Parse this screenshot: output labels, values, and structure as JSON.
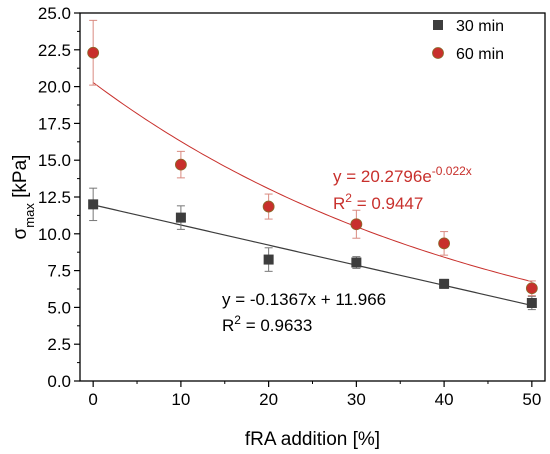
{
  "chart_data": {
    "type": "scatter",
    "xlabel": "fRA addition [%]",
    "ylabel_main": "σ",
    "ylabel_sub": "max",
    "ylabel_unit": " [kPa]",
    "xlim": [
      -1.5,
      51.5
    ],
    "ylim": [
      0,
      25
    ],
    "x_ticks": [
      0,
      10,
      20,
      30,
      40,
      50
    ],
    "y_ticks": [
      0.0,
      2.5,
      5.0,
      7.5,
      10.0,
      12.5,
      15.0,
      17.5,
      20.0,
      22.5,
      25.0
    ],
    "x_tick_labels": [
      "0",
      "10",
      "20",
      "30",
      "40",
      "50"
    ],
    "y_tick_labels": [
      "0.0",
      "2.5",
      "5.0",
      "7.5",
      "10.0",
      "12.5",
      "15.0",
      "17.5",
      "20.0",
      "22.5",
      "25.0"
    ],
    "legend_position": "top-right",
    "series": [
      {
        "name": "30 min",
        "marker": "square",
        "color": "#3d3d3d",
        "x": [
          0,
          10,
          20,
          30,
          40,
          50
        ],
        "y": [
          12.0,
          11.1,
          8.25,
          8.05,
          6.6,
          5.3
        ],
        "yerr": [
          1.1,
          0.8,
          0.8,
          0.4,
          0.3,
          0.45
        ]
      },
      {
        "name": "60 min",
        "marker": "circle",
        "color": "#c8302c",
        "x": [
          0,
          10,
          20,
          30,
          40,
          50
        ],
        "y": [
          22.3,
          14.7,
          11.85,
          10.65,
          9.35,
          6.3
        ],
        "yerr": [
          2.2,
          0.9,
          0.85,
          0.95,
          0.8,
          0.5
        ]
      }
    ],
    "fits": [
      {
        "series": "30 min",
        "type": "linear",
        "slope": -0.1367,
        "intercept": 11.966,
        "color": "#3d3d3d",
        "equation_text": "y = -0.1367x + 11.966",
        "r2_value": " = 0.9633"
      },
      {
        "series": "60 min",
        "type": "exponential",
        "a": 20.2796,
        "b": -0.022,
        "color": "#c8302c",
        "equation_text": "y = 20.2796e",
        "equation_exponent": "-0.022x",
        "r2_value": " = 0.9447"
      }
    ]
  }
}
